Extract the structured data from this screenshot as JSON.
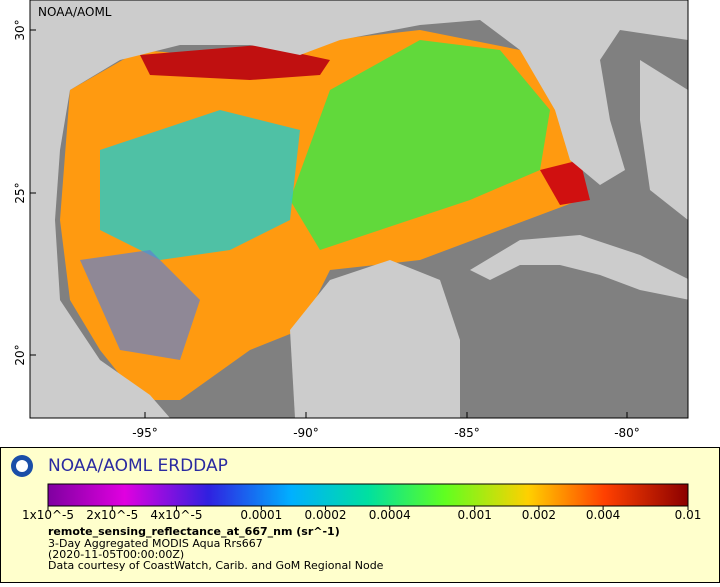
{
  "map": {
    "corner_label": "NOAA/AOML",
    "lat_ticks": [
      "30°",
      "25°",
      "20°"
    ],
    "lon_ticks": [
      "-95°",
      "-90°",
      "-85°",
      "-80°"
    ]
  },
  "legend": {
    "title": "NOAA/AOML ERDDAP",
    "colorbar": {
      "log": true,
      "range": [
        1e-05,
        0.01
      ],
      "ticks": [
        {
          "value": 1e-05,
          "label": "1x10^-5"
        },
        {
          "value": 2e-05,
          "label": "2x10^-5"
        },
        {
          "value": 4e-05,
          "label": "4x10^-5"
        },
        0.0001,
        0.0002,
        0.0004,
        0.001,
        0.002,
        0.004,
        0.01
      ]
    },
    "variable": "remote_sensing_reflectance_at_667_nm (sr^-1)",
    "lines": [
      "3-Day Aggregated MODIS Aqua Rrs667",
      "(2020-11-05T00:00:00Z)",
      "Data courtesy of CoastWatch, Carib. and GoM Regional Node"
    ]
  }
}
